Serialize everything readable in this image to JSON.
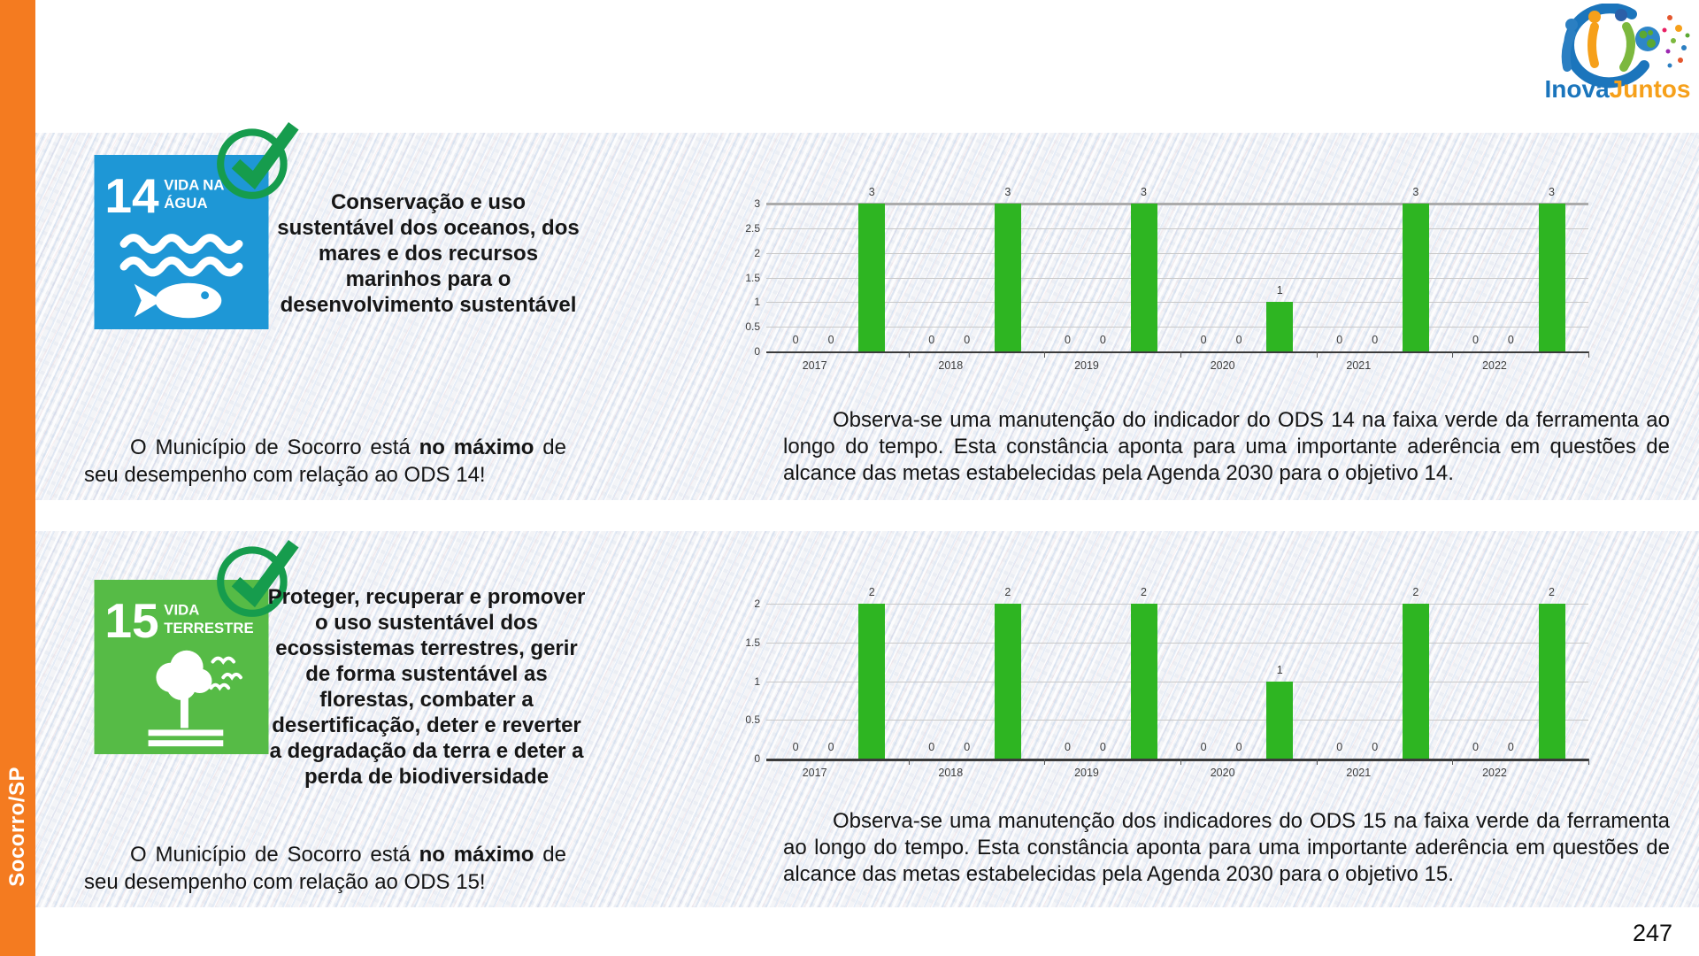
{
  "page": {
    "number": "247"
  },
  "sidebar": {
    "label": "Socorro/SP"
  },
  "logo": {
    "inova": "Inova",
    "juntos": "Juntos"
  },
  "colors": {
    "sidebar_orange": "#F47B20",
    "ods14_blue": "#1E97D6",
    "ods15_green": "#56BB46",
    "check_green": "#169C4D",
    "bar_green": "#2EB522",
    "inova_blue": "#1B75BC",
    "juntos_orange": "#F6A01A"
  },
  "sections": [
    {
      "goal": {
        "number": "14",
        "label_line1": "VIDA NA",
        "label_line2": "ÁGUA"
      },
      "title": "Conservação e uso sustentável dos oceanos, dos mares e dos recursos marinhos para o desenvolvimento sustentável",
      "statement": {
        "pre": "O Município de Socorro está ",
        "bold": "no máximo",
        "post": " de seu desempenho com relação ao ODS 14!"
      },
      "observation": "Observa-se uma manutenção do indicador do ODS 14 na faixa verde da ferramenta ao longo do tempo. Esta constância aponta para uma importante aderência em questões de alcance das metas estabelecidas pela Agenda 2030 para o objetivo 14."
    },
    {
      "goal": {
        "number": "15",
        "label_line1": "VIDA",
        "label_line2": "TERRESTRE"
      },
      "title": "Proteger, recuperar e promover o uso sustentável dos ecossistemas terrestres, gerir de forma sustentável as florestas, combater a desertificação, deter e reverter a degradação da terra e deter a perda de biodiversidade",
      "statement": {
        "pre": "O Município de Socorro está ",
        "bold": "no máximo",
        "post": " de seu desempenho com relação ao ODS 15!"
      },
      "observation": "Observa-se uma manutenção dos indicadores do ODS 15 na faixa verde da ferramenta ao longo do tempo. Esta constância aponta para uma importante aderência em questões de alcance das metas estabelecidas pela Agenda 2030 para o objetivo 15."
    }
  ],
  "chart_data": [
    {
      "type": "bar",
      "title": "",
      "xlabel": "",
      "ylabel": "",
      "categories": [
        "2017",
        "2018",
        "2019",
        "2020",
        "2021",
        "2022"
      ],
      "group_values": [
        [
          0,
          0,
          3
        ],
        [
          0,
          0,
          3
        ],
        [
          0,
          0,
          3
        ],
        [
          0,
          0,
          1
        ],
        [
          0,
          0,
          3
        ],
        [
          0,
          0,
          3
        ]
      ],
      "ylim": [
        0,
        3
      ],
      "ytick_step": 0.5,
      "grid": true,
      "legend": false,
      "data_labels": true,
      "bar_color": "#2EB522",
      "emphasized_gridline": 3,
      "baseline_width": 2
    },
    {
      "type": "bar",
      "title": "",
      "xlabel": "",
      "ylabel": "",
      "categories": [
        "2017",
        "2018",
        "2019",
        "2020",
        "2021",
        "2022"
      ],
      "group_values": [
        [
          0,
          0,
          2
        ],
        [
          0,
          0,
          2
        ],
        [
          0,
          0,
          2
        ],
        [
          0,
          0,
          1
        ],
        [
          0,
          0,
          2
        ],
        [
          0,
          0,
          2
        ]
      ],
      "ylim": [
        0,
        2
      ],
      "ytick_step": 0.5,
      "grid": true,
      "legend": false,
      "data_labels": true,
      "bar_color": "#2EB522",
      "emphasized_gridline": null,
      "baseline_width": 3
    }
  ]
}
